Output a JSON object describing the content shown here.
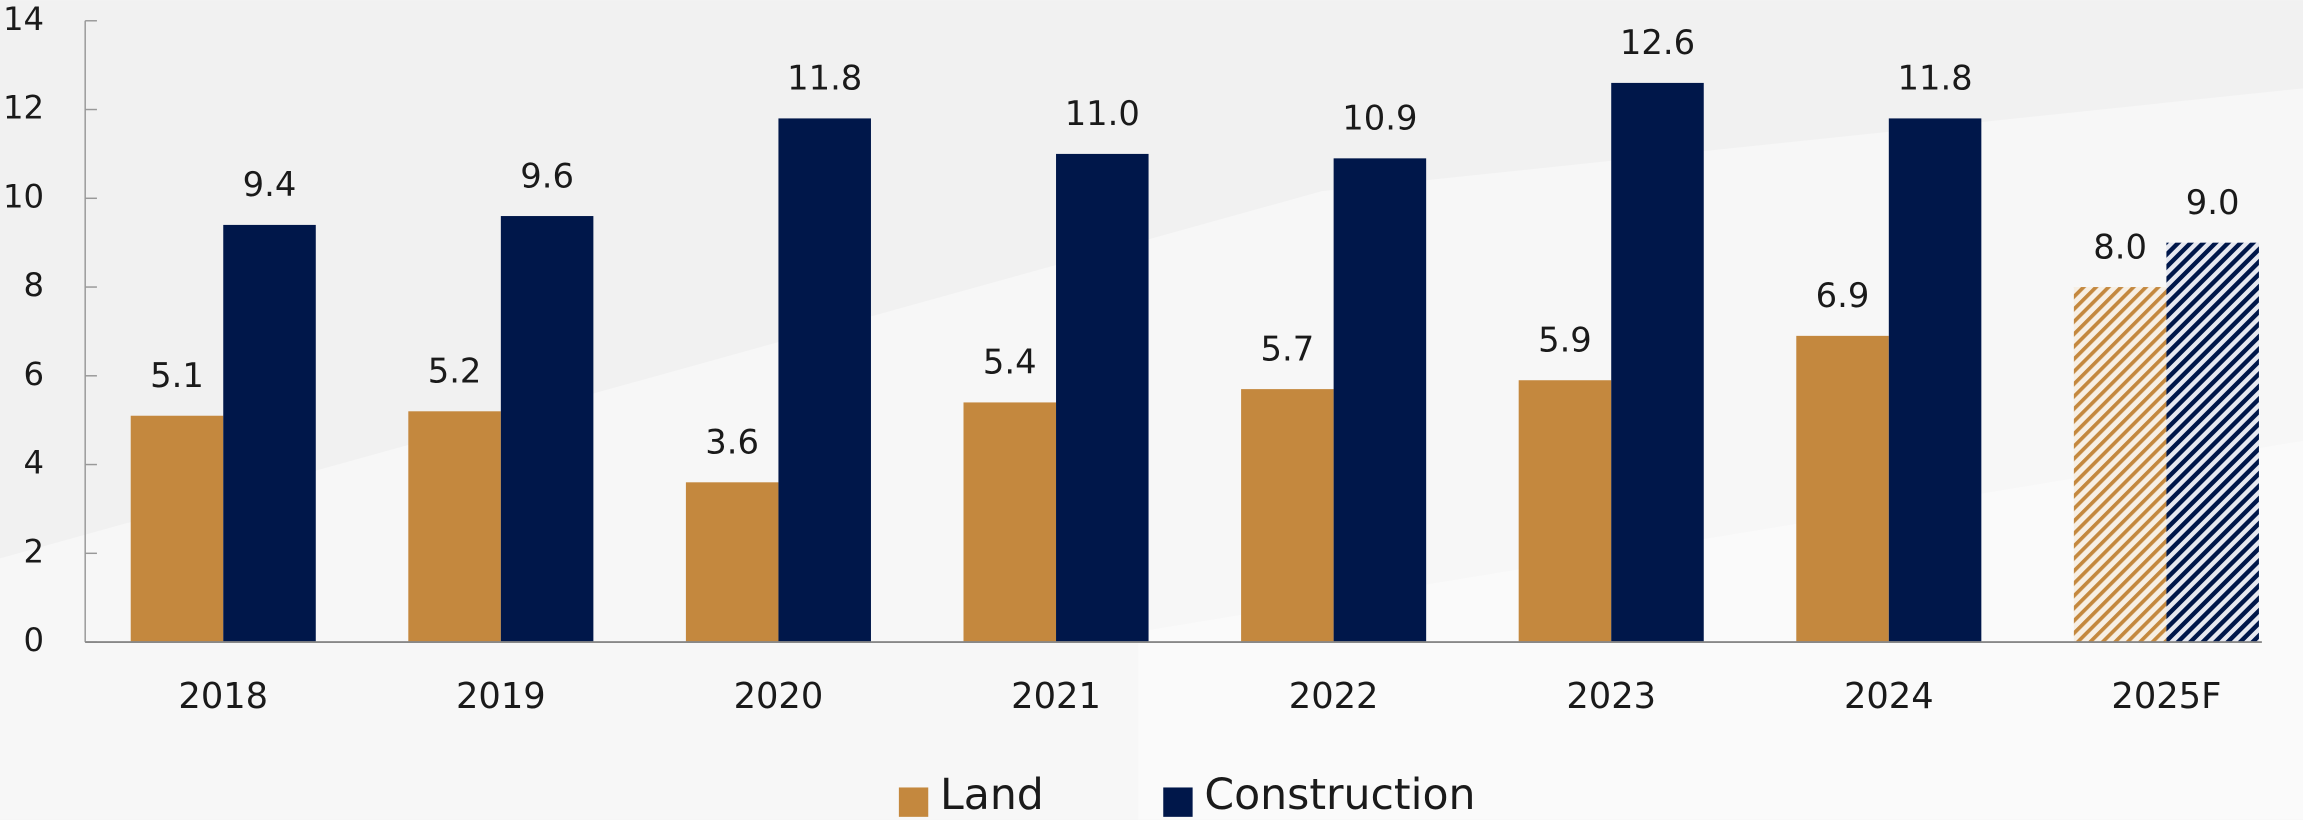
{
  "chart_data": {
    "type": "bar",
    "categories": [
      "2018",
      "2019",
      "2020",
      "2021",
      "2022",
      "2023",
      "2024",
      "2025F"
    ],
    "series": [
      {
        "name": "Land",
        "color": "#c4883e",
        "values": [
          5.1,
          5.2,
          3.6,
          5.4,
          5.7,
          5.9,
          6.9,
          8.0
        ],
        "value_labels": [
          "5.1",
          "5.2",
          "3.6",
          "5.4",
          "5.7",
          "5.9",
          "6.9",
          "8.0"
        ]
      },
      {
        "name": "Construction",
        "color": "#00174a",
        "values": [
          9.4,
          9.6,
          11.8,
          11.0,
          10.9,
          12.6,
          11.8,
          9.0
        ],
        "value_labels": [
          "9.4",
          "9.6",
          "11.8",
          "11.0",
          "10.9",
          "12.6",
          "11.8",
          "9.0"
        ]
      }
    ],
    "hatched": [
      7
    ],
    "ylim": [
      0,
      14
    ],
    "yticks": [
      0,
      2,
      4,
      6,
      8,
      10,
      12,
      14
    ],
    "grid": false,
    "legend": "bottom"
  }
}
